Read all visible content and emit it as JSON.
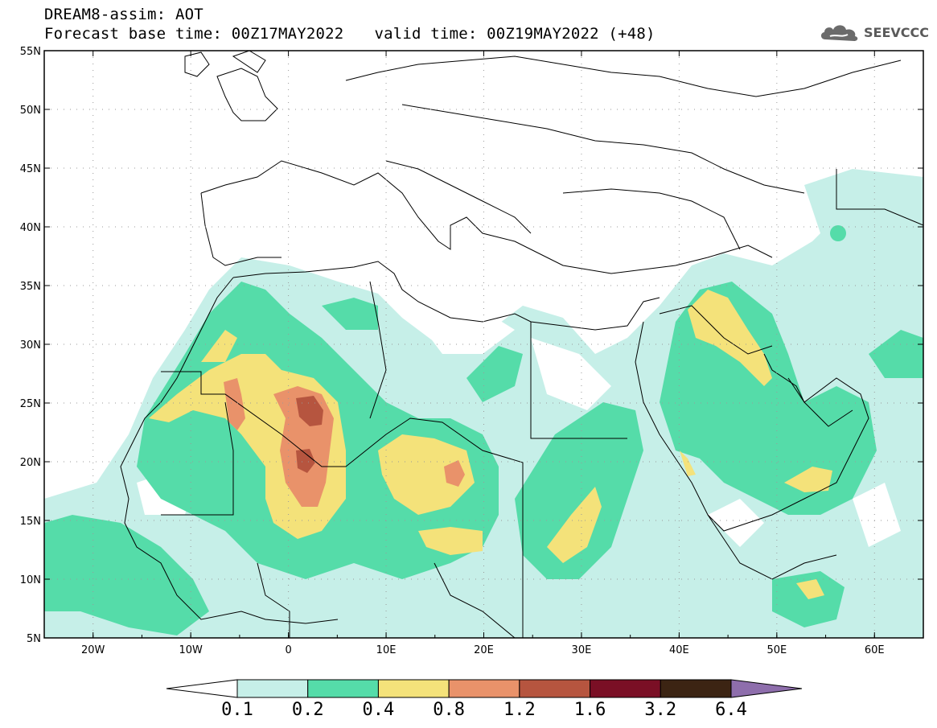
{
  "header": {
    "title": "DREAM8-assim: AOT",
    "base_time": "Forecast base time: 00Z17MAY2022",
    "valid_time": "valid time: 00Z19MAY2022 (+48)"
  },
  "logo": {
    "text": "SEEVCCC",
    "icon": "cloud-logo-icon"
  },
  "map": {
    "lon_min": -25,
    "lon_max": 65,
    "lat_min": 5,
    "lat_max": 55,
    "lat_ticks": [
      "5N",
      "10N",
      "15N",
      "20N",
      "25N",
      "30N",
      "35N",
      "40N",
      "45N",
      "50N",
      "55N"
    ],
    "lon_ticks": [
      "20W",
      "10W",
      "0",
      "10E",
      "20E",
      "30E",
      "40E",
      "50E",
      "60E"
    ]
  },
  "colorbar": {
    "labels": [
      "0.1",
      "0.2",
      "0.4",
      "0.8",
      "1.2",
      "1.6",
      "3.2",
      "6.4"
    ],
    "colors": [
      "#ffffff",
      "#c6efe8",
      "#55dca9",
      "#f4e27a",
      "#e9926a",
      "#b6553f",
      "#7a0f25",
      "#3c2413",
      "#8e6eac"
    ]
  }
}
